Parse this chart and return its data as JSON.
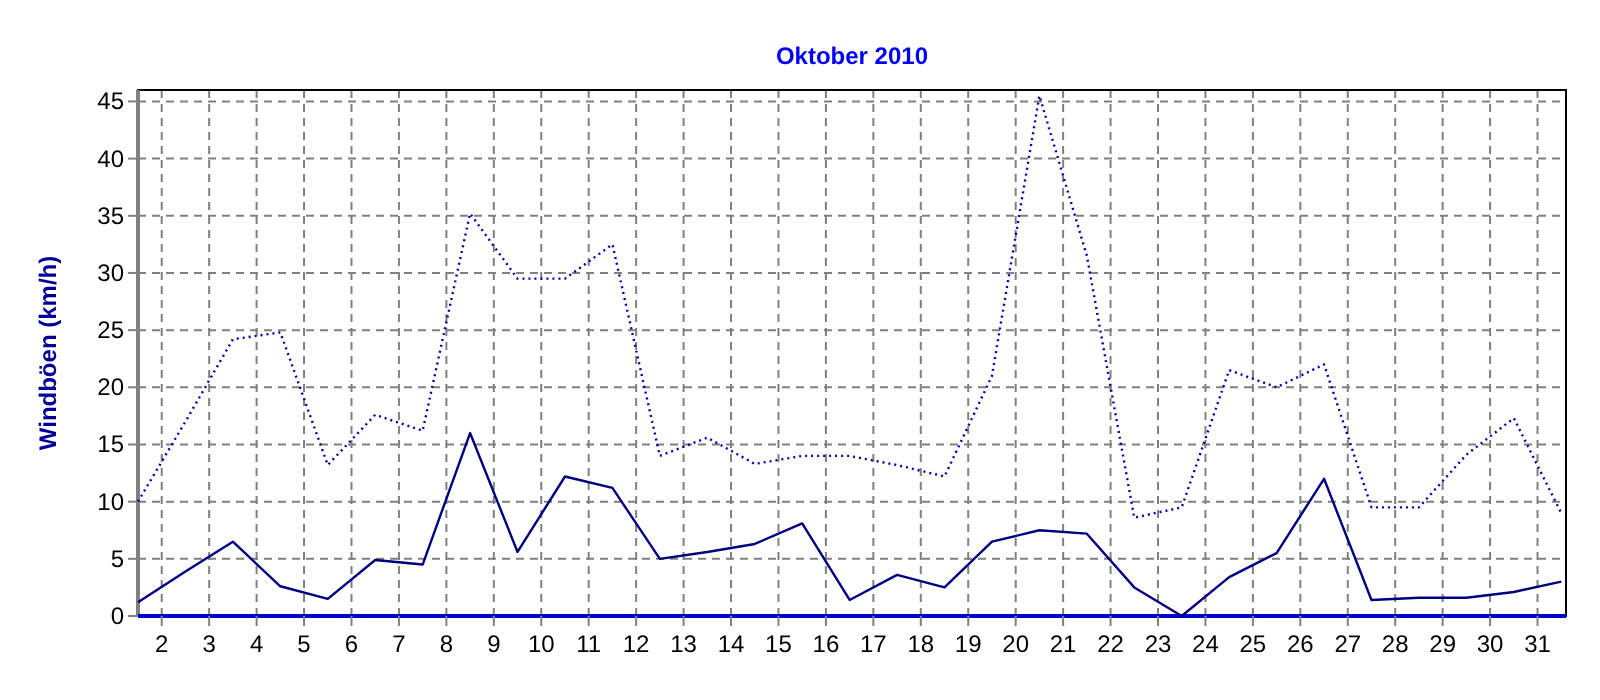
{
  "chart_data": {
    "type": "line",
    "title": "Oktober 2010",
    "ylabel": "Windböen  (km/h)",
    "x": [
      1.5,
      2.5,
      3.5,
      4.5,
      5.5,
      6.5,
      7.5,
      8.5,
      9.5,
      10.5,
      11.5,
      12.5,
      13.5,
      14.5,
      15.5,
      16.5,
      17.5,
      18.5,
      19.5,
      20.5,
      21.5,
      22.5,
      23.5,
      24.5,
      25.5,
      26.5,
      27.5,
      28.5,
      29.5,
      30.5,
      31.5
    ],
    "series": [
      {
        "color": "#0000aa",
        "line_style": "dotted",
        "values": [
          10,
          17,
          24.2,
          24.8,
          13.2,
          17.6,
          16.2,
          35.2,
          29.5,
          29.5,
          32.5,
          14,
          15.6,
          13.3,
          14,
          14,
          13.2,
          12.2,
          21,
          45.5,
          31.5,
          8.6,
          9.5,
          21.5,
          20,
          22,
          9.5,
          9.5,
          14.1,
          17.3,
          9
        ]
      },
      {
        "color": "#000080",
        "line_style": "solid",
        "values": [
          1.2,
          3.9,
          6.5,
          2.6,
          1.5,
          4.9,
          4.5,
          16,
          5.6,
          12.2,
          11.2,
          5,
          5.6,
          6.3,
          8.1,
          1.4,
          3.6,
          2.5,
          6.5,
          7.5,
          7.2,
          2.5,
          0,
          3.4,
          5.5,
          12,
          1.4,
          1.6,
          1.6,
          2.1,
          3
        ]
      }
    ],
    "xlim": [
      1.5,
      31.6
    ],
    "xticks": [
      2,
      3,
      4,
      5,
      6,
      7,
      8,
      9,
      10,
      11,
      12,
      13,
      14,
      15,
      16,
      17,
      18,
      19,
      20,
      21,
      22,
      23,
      24,
      25,
      26,
      27,
      28,
      29,
      30,
      31
    ],
    "ylim": [
      0,
      46
    ],
    "yticks": [
      0,
      5,
      10,
      15,
      20,
      25,
      30,
      35,
      40,
      45
    ],
    "grid": true,
    "marker": "none"
  }
}
